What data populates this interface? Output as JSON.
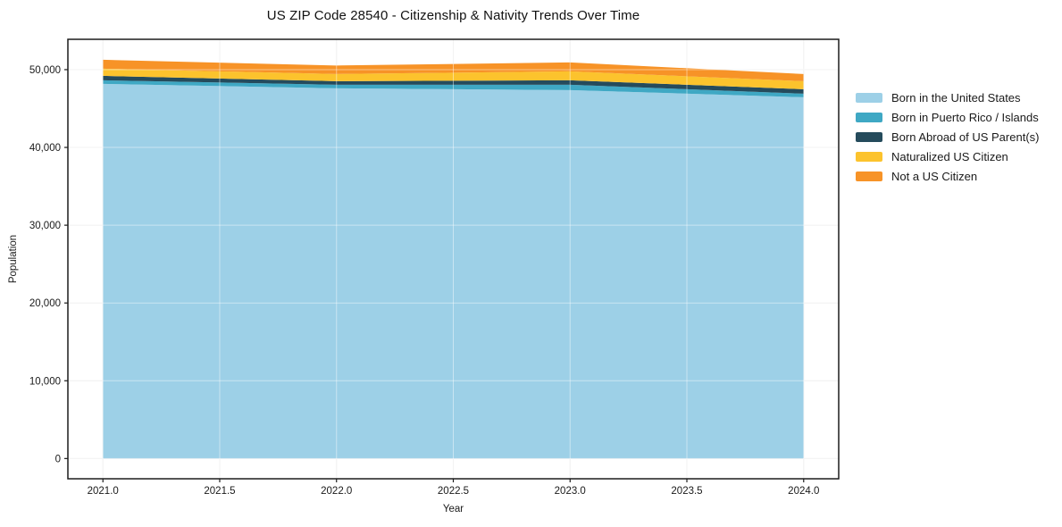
{
  "chart_data": {
    "type": "area",
    "stacked": true,
    "title": "US ZIP Code 28540 - Citizenship & Nativity Trends Over Time",
    "xlabel": "Year",
    "ylabel": "Population",
    "x": [
      2021,
      2022,
      2023,
      2024
    ],
    "series": [
      {
        "name": "Born in the United States",
        "color": "#9DD0E7",
        "values": [
          48170,
          47600,
          47370,
          46450
        ]
      },
      {
        "name": "Born in Puerto Rico / Islands",
        "color": "#3FA8C4",
        "values": [
          460,
          460,
          690,
          460
        ]
      },
      {
        "name": "Born Abroad of US Parent(s)",
        "color": "#254B5C",
        "values": [
          570,
          460,
          570,
          570
        ]
      },
      {
        "name": "Naturalized US Citizen",
        "color": "#FCC32D",
        "values": [
          920,
          920,
          1150,
          1030
        ]
      },
      {
        "name": "Not a US Citizen",
        "color": "#F79327",
        "values": [
          1150,
          1090,
          1150,
          920
        ]
      }
    ],
    "totals": [
      51270,
      50530,
      50930,
      49430
    ],
    "xticks": {
      "values": [
        2021.0,
        2021.5,
        2022.0,
        2022.5,
        2023.0,
        2023.5,
        2024.0
      ],
      "labels": [
        "2021.0",
        "2021.5",
        "2022.0",
        "2022.5",
        "2023.0",
        "2023.5",
        "2024.0"
      ]
    },
    "yticks": {
      "values": [
        0,
        10000,
        20000,
        30000,
        40000,
        50000
      ],
      "labels": [
        "0",
        "10,000",
        "20,000",
        "30,000",
        "40,000",
        "50,000"
      ]
    },
    "xlim": [
      2020.85,
      2024.15
    ],
    "ylim": [
      -2600,
      53900
    ],
    "grid": true,
    "grid_color_under": "#e9e9e9",
    "grid_color_over": "rgba(255,255,255,0.45)",
    "spine_color": "#1c1c1c",
    "legend_position": "outside-right"
  }
}
